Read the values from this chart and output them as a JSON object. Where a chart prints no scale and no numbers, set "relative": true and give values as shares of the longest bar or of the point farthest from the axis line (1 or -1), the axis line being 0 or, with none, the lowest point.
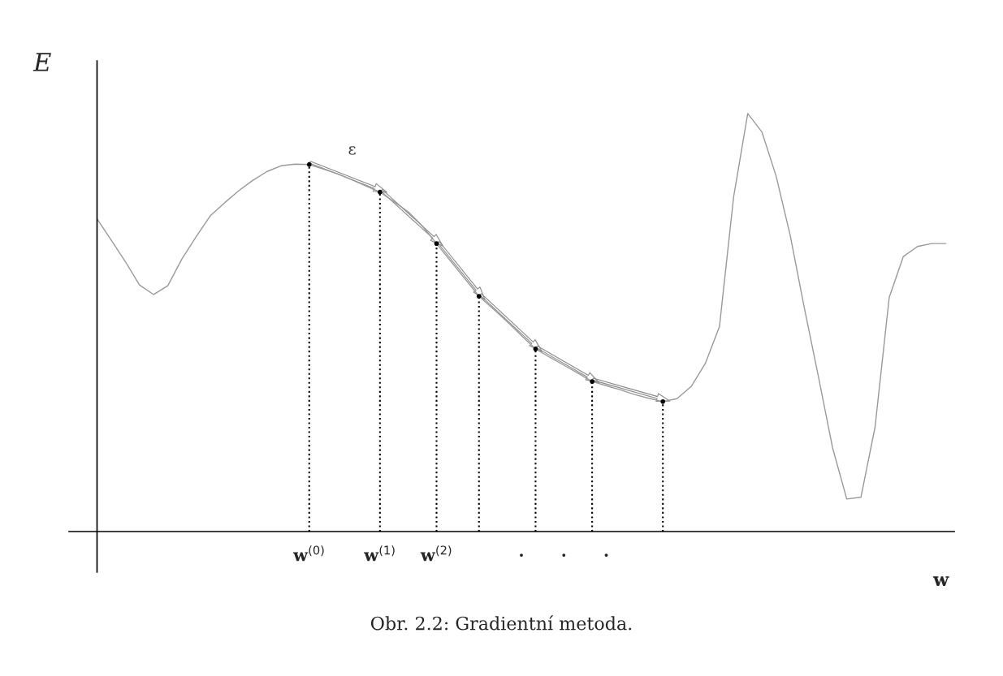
{
  "chart_data": {
    "type": "line",
    "relative": true,
    "ylabel": "E",
    "xlabel": "w",
    "categories": [
      null,
      null,
      null,
      null,
      null,
      null,
      null,
      null,
      null,
      null,
      null,
      null,
      null,
      null,
      null,
      "w$^{(0)}$",
      null,
      null,
      null,
      null,
      "w$^{(1)}$",
      null,
      null,
      null,
      "w$^{(2)}$",
      null,
      null,
      null,
      null,
      null,
      "·",
      null,
      null,
      "·",
      null,
      null,
      "·",
      null,
      null,
      null,
      null,
      null,
      null,
      null,
      null,
      null,
      null,
      null,
      null,
      null,
      null,
      null,
      null,
      null,
      null,
      null,
      null,
      null,
      null,
      null,
      null
    ],
    "annotations": [
      "ε",
      "Obr. 2.2: Gradientní metoda."
    ],
    "series": [
      {
        "color": "#999999",
        "values": [
          0.748,
          0.697,
          0.646,
          0.59,
          0.567,
          0.588,
          0.652,
          0.705,
          0.755,
          0.786,
          0.815,
          0.84,
          0.861,
          0.875,
          0.879,
          0.878,
          0.867,
          0.856,
          0.842,
          0.827,
          0.812,
          0.789,
          0.765,
          0.731,
          0.689,
          0.647,
          0.605,
          0.563,
          0.533,
          0.502,
          0.469,
          0.437,
          0.417,
          0.398,
          0.379,
          0.359,
          0.349,
          0.339,
          0.328,
          0.319,
          0.311,
          0.318,
          0.347,
          0.402,
          0.49,
          0.8,
          1.0,
          0.956,
          0.851,
          0.709,
          0.535,
          0.37,
          0.2,
          0.078,
          0.082,
          0.25,
          0.56,
          0.658,
          0.682,
          0.689,
          0.689
        ]
      },
      {
        "type": "lollipop",
        "color": "#000000",
        "marker": "circle",
        "line_style": "dotted",
        "values": [
          null,
          null,
          null,
          null,
          null,
          null,
          null,
          null,
          null,
          null,
          null,
          null,
          null,
          null,
          null,
          0.878,
          null,
          null,
          null,
          null,
          0.812,
          null,
          null,
          null,
          0.689,
          null,
          null,
          0.563,
          null,
          null,
          null,
          0.437,
          null,
          null,
          null,
          0.359,
          null,
          null,
          null,
          null,
          0.311,
          null,
          null,
          null,
          null,
          null,
          null,
          null,
          null,
          null,
          null,
          null,
          null,
          null,
          null,
          null,
          null,
          null,
          null,
          null,
          null
        ]
      }
    ]
  }
}
